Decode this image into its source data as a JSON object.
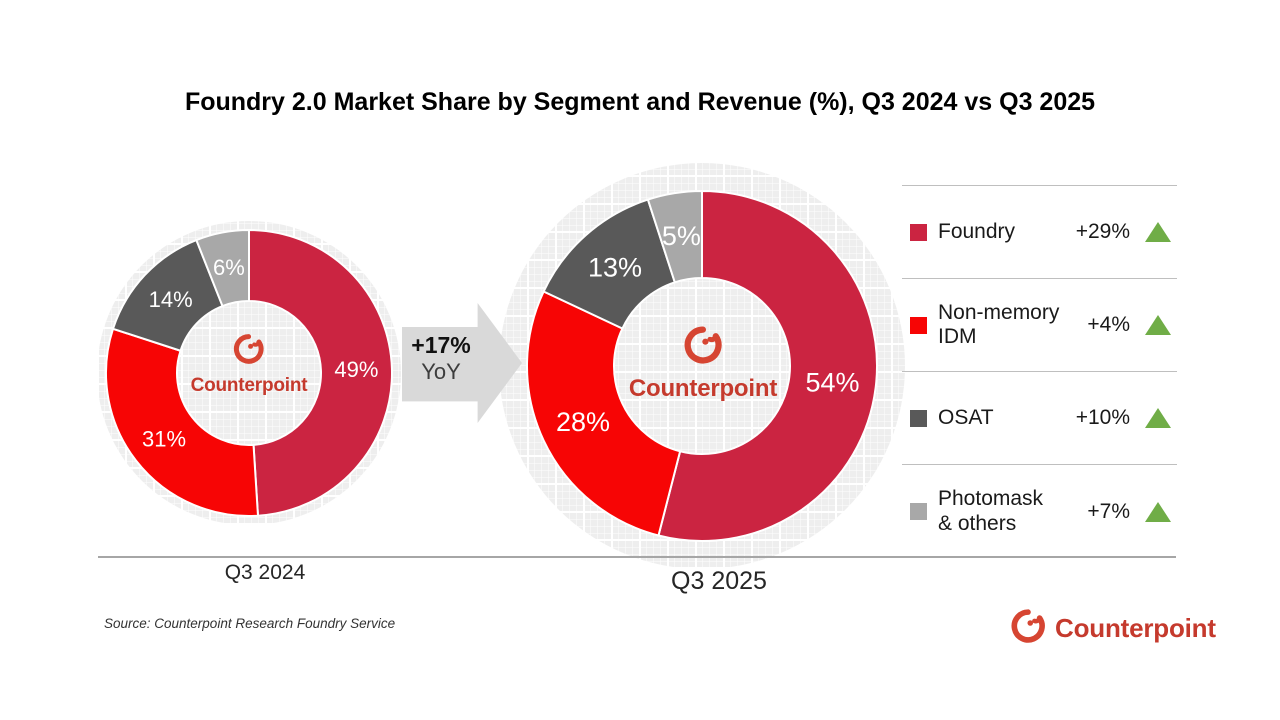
{
  "title": "Foundry 2.0 Market Share by Segment and Revenue (%), Q3 2024 vs Q3 2025",
  "source_note": "Source: Counterpoint Research Foundry Service",
  "brand": {
    "name": "Counterpoint",
    "icon_color": "#D64532",
    "text_color": "#C53A2D"
  },
  "yoy_arrow": {
    "delta": "+17%",
    "label": "YoY",
    "color": "#D9D9D9"
  },
  "axis": {
    "baseline_color": "#A6A6A6"
  },
  "chart_data": [
    {
      "type": "pie",
      "subtype": "donut",
      "title": "Q3 2024",
      "categories": [
        "Foundry",
        "Non-memory IDM",
        "OSAT",
        "Photomask & others"
      ],
      "values": [
        49,
        31,
        14,
        6
      ],
      "labels": [
        "49%",
        "31%",
        "14%",
        "6%"
      ],
      "colors": [
        "#CB2441",
        "#F70505",
        "#595959",
        "#A8A8A8"
      ],
      "start": "12 o'clock, clockwise",
      "label_position": "mid-ring, white text"
    },
    {
      "type": "pie",
      "subtype": "donut",
      "title": "Q3 2025",
      "categories": [
        "Foundry",
        "Non-memory IDM",
        "OSAT",
        "Photomask & others"
      ],
      "values": [
        54,
        28,
        13,
        5
      ],
      "labels": [
        "54%",
        "28%",
        "13%",
        "5%"
      ],
      "colors": [
        "#CB2441",
        "#F70505",
        "#595959",
        "#A8A8A8"
      ],
      "start": "12 o'clock, clockwise",
      "label_position": "mid-ring, white text"
    }
  ],
  "legend": {
    "up_color": "#70AD47",
    "items": [
      {
        "label": "Foundry",
        "delta": "+29%",
        "direction": "up",
        "swatch": "#CB2441"
      },
      {
        "label": "Non-memory\nIDM",
        "delta": "+4%",
        "direction": "up",
        "swatch": "#F70505"
      },
      {
        "label": "OSAT",
        "delta": "+10%",
        "direction": "up",
        "swatch": "#595959"
      },
      {
        "label": "Photomask\n& others",
        "delta": "+7%",
        "direction": "up",
        "swatch": "#A8A8A8"
      }
    ]
  }
}
